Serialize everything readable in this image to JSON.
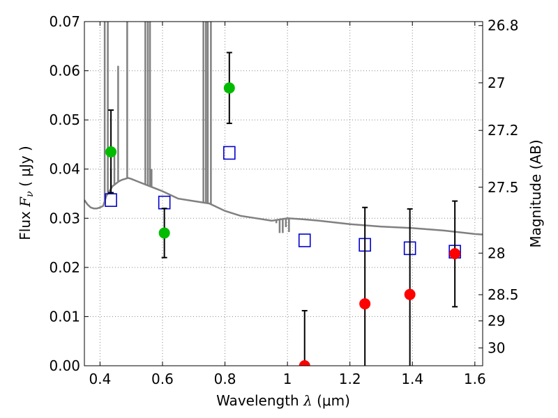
{
  "chart_data": {
    "type": "scatter",
    "xlabel": {
      "prefix": "Wavelength  ",
      "symbol": "λ",
      "unit": " (μm)"
    },
    "ylabel": {
      "prefix": "Flux  ",
      "symbol": "F",
      "subscript": "ν",
      "unit": "  ( μJy )"
    },
    "y2label": "Magnitude (AB)",
    "xlim": [
      0.35,
      1.625
    ],
    "ylim": [
      0.0,
      0.07
    ],
    "grid": true,
    "grid_style": "dotted",
    "x_ticks": [
      0.4,
      0.6,
      0.8,
      1.0,
      1.2,
      1.4,
      1.6
    ],
    "x_tick_labels": [
      "0.4",
      "0.6",
      "0.8",
      "1",
      "1.2",
      "1.4",
      "1.6"
    ],
    "y_ticks": [
      0.0,
      0.01,
      0.02,
      0.03,
      0.04,
      0.05,
      0.06,
      0.07
    ],
    "y_tick_labels": [
      "0.00",
      "0.01",
      "0.02",
      "0.03",
      "0.04",
      "0.05",
      "0.06",
      "0.07"
    ],
    "y2_ticks": [
      {
        "label": "26.8",
        "mag": 26.8
      },
      {
        "label": "27",
        "mag": 27.0
      },
      {
        "label": "27.2",
        "mag": 27.2
      },
      {
        "label": "27.5",
        "mag": 27.5
      },
      {
        "label": "28",
        "mag": 28.0
      },
      {
        "label": "28.5",
        "mag": 28.5
      },
      {
        "label": "29",
        "mag": 29.0
      },
      {
        "label": "30",
        "mag": 30.0
      }
    ],
    "colors": {
      "detection": "#00bb00",
      "upper_limit": "#ff0000",
      "model_photometry": "#0000cc",
      "template_spectrum": "#808080",
      "error_bar": "#000000",
      "grid": "#888888"
    },
    "series": [
      {
        "marker": "circle",
        "color": "#00bb00",
        "points": [
          {
            "x": 0.435,
            "y": 0.0435,
            "ylo": 0.0352,
            "yhi": 0.052
          },
          {
            "x": 0.606,
            "y": 0.027,
            "ylo": 0.022,
            "yhi": 0.032
          },
          {
            "x": 0.814,
            "y": 0.0565,
            "ylo": 0.0493,
            "yhi": 0.0637
          }
        ]
      },
      {
        "marker": "circle",
        "color": "#ff0000",
        "points": [
          {
            "x": 1.055,
            "y": 0.0,
            "ylo": 0.0,
            "yhi": 0.0112
          },
          {
            "x": 1.248,
            "y": 0.0126,
            "ylo": 0.0,
            "yhi": 0.0322
          },
          {
            "x": 1.392,
            "y": 0.0145,
            "ylo": 0.0,
            "yhi": 0.0319
          },
          {
            "x": 1.536,
            "y": 0.0228,
            "ylo": 0.012,
            "yhi": 0.0335
          }
        ]
      },
      {
        "marker": "square-open",
        "color": "#0000cc",
        "points": [
          {
            "x": 0.435,
            "y": 0.0337
          },
          {
            "x": 0.606,
            "y": 0.0332
          },
          {
            "x": 0.814,
            "y": 0.0433
          },
          {
            "x": 1.055,
            "y": 0.0255
          },
          {
            "x": 1.248,
            "y": 0.0246
          },
          {
            "x": 1.392,
            "y": 0.0239
          },
          {
            "x": 1.536,
            "y": 0.0232
          }
        ]
      },
      {
        "marker": "line",
        "color": "#808080",
        "x": [
          0.35,
          0.36,
          0.37,
          0.38,
          0.39,
          0.4,
          0.41,
          0.415,
          0.42,
          0.425,
          0.43,
          0.44,
          0.45,
          0.46,
          0.47,
          0.48,
          0.49,
          0.5,
          0.52,
          0.54,
          0.56,
          0.58,
          0.6,
          0.65,
          0.7,
          0.75,
          0.8,
          0.85,
          0.9,
          0.95,
          1.0,
          1.05,
          1.1,
          1.2,
          1.3,
          1.4,
          1.5,
          1.6,
          1.625
        ],
        "y": [
          0.0337,
          0.0328,
          0.0322,
          0.032,
          0.032,
          0.0322,
          0.0325,
          0.0335,
          0.0345,
          0.035,
          0.0355,
          0.0365,
          0.037,
          0.0375,
          0.0378,
          0.038,
          0.0382,
          0.038,
          0.0375,
          0.037,
          0.0365,
          0.036,
          0.0355,
          0.034,
          0.0335,
          0.033,
          0.0315,
          0.0305,
          0.03,
          0.0295,
          0.03,
          0.0298,
          0.0295,
          0.0288,
          0.0283,
          0.028,
          0.0275,
          0.0268,
          0.0267
        ]
      },
      {
        "marker": "spike",
        "color": "#808080",
        "points": [
          {
            "x": 0.415,
            "y": 0.07
          },
          {
            "x": 0.425,
            "y": 0.07
          },
          {
            "x": 0.435,
            "y": 0.04
          },
          {
            "x": 0.446,
            "y": 0.044
          },
          {
            "x": 0.458,
            "y": 0.061
          },
          {
            "x": 0.487,
            "y": 0.07
          },
          {
            "x": 0.545,
            "y": 0.07
          },
          {
            "x": 0.553,
            "y": 0.07
          },
          {
            "x": 0.56,
            "y": 0.07
          },
          {
            "x": 0.565,
            "y": 0.04
          },
          {
            "x": 0.731,
            "y": 0.07
          },
          {
            "x": 0.739,
            "y": 0.07
          },
          {
            "x": 0.745,
            "y": 0.07
          },
          {
            "x": 0.755,
            "y": 0.07
          }
        ]
      },
      {
        "marker": "dip",
        "color": "#808080",
        "points": [
          {
            "x": 0.9645,
            "y": 0.029
          },
          {
            "x": 0.975,
            "y": 0.027
          },
          {
            "x": 0.985,
            "y": 0.027
          },
          {
            "x": 0.995,
            "y": 0.0282
          },
          {
            "x": 1.005,
            "y": 0.0272
          }
        ]
      }
    ]
  }
}
